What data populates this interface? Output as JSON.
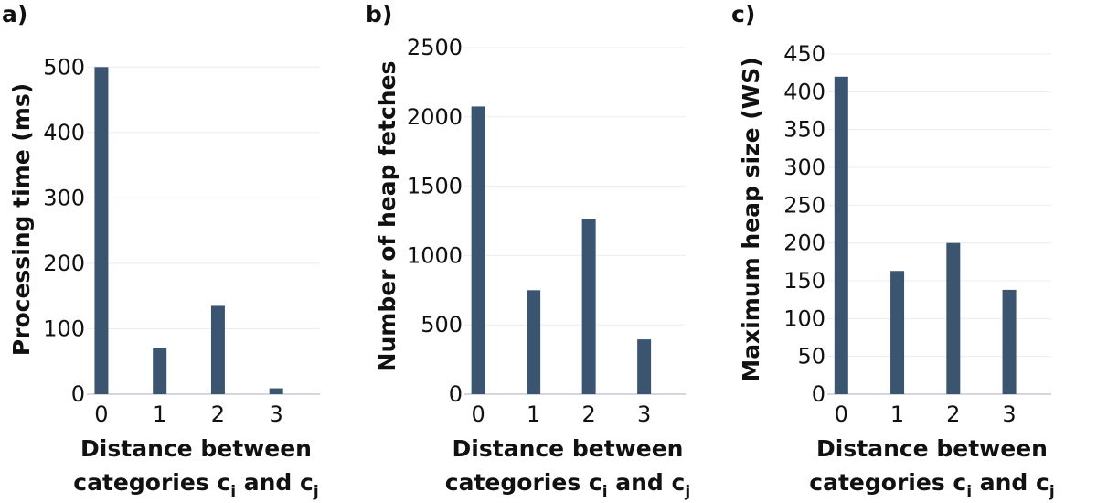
{
  "chart_data": [
    {
      "type": "bar",
      "panel_label": "a)",
      "categories": [
        "0",
        "1",
        "2",
        "3"
      ],
      "values": [
        500,
        70,
        135,
        9
      ],
      "ylabel": "Processing time (ms)",
      "xlabel": "Distance between categories c_i and c_j",
      "ylim": [
        0,
        520
      ],
      "yticks": [
        0,
        100,
        200,
        300,
        400,
        500
      ],
      "grid": true,
      "color": "#3b5570"
    },
    {
      "type": "bar",
      "panel_label": "b)",
      "categories": [
        "0",
        "1",
        "2",
        "3"
      ],
      "values": [
        2075,
        750,
        1265,
        395
      ],
      "ylabel": "Number of heap fetches",
      "xlabel": "Distance between categories c_i and c_j",
      "ylim": [
        0,
        2500
      ],
      "yticks": [
        0,
        500,
        1000,
        1500,
        2000,
        2500
      ],
      "grid": true,
      "color": "#3b5570"
    },
    {
      "type": "bar",
      "panel_label": "c)",
      "categories": [
        "0",
        "1",
        "2",
        "3"
      ],
      "values": [
        420,
        163,
        200,
        138
      ],
      "ylabel": "Maximum heap size (WS)",
      "xlabel": "Distance between categories c_i and c_j",
      "ylim": [
        0,
        450
      ],
      "yticks": [
        0,
        50,
        100,
        150,
        200,
        250,
        300,
        350,
        400,
        450
      ],
      "grid": true,
      "color": "#3b5570"
    }
  ],
  "xlabel_parts": {
    "line1": "Distance between",
    "line2_prefix": "categories c",
    "sub_i": "i",
    "middle": " and c",
    "sub_j": "j"
  }
}
